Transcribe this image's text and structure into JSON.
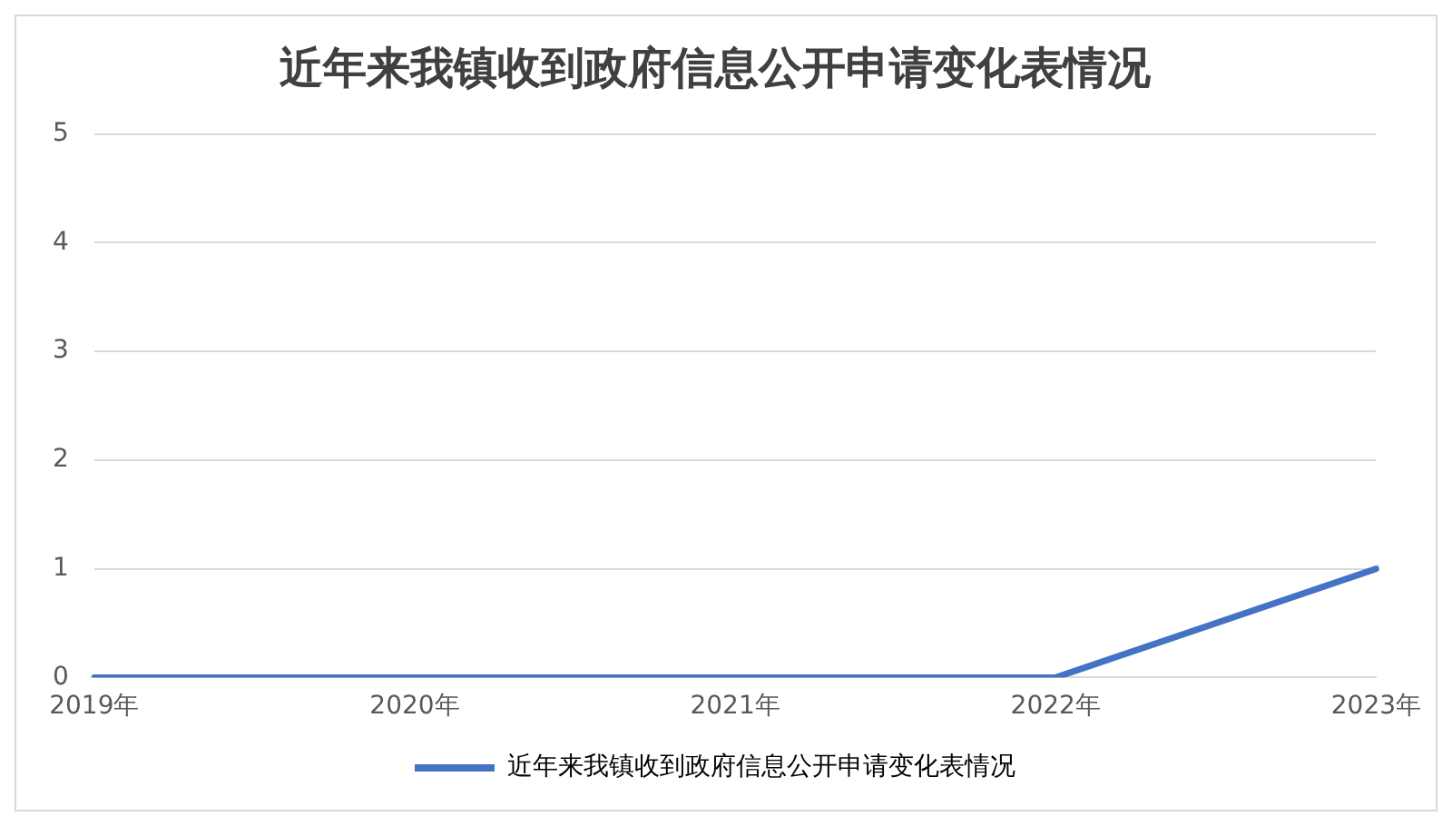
{
  "chart_data": {
    "type": "line",
    "title": "近年来我镇收到政府信息公开申请变化表情况",
    "categories": [
      "2019年",
      "2020年",
      "2021年",
      "2022年",
      "2023年"
    ],
    "series": [
      {
        "name": "近年来我镇收到政府信息公开申请变化表情况",
        "color": "#4472c4",
        "values": [
          0,
          0,
          0,
          0,
          1
        ]
      }
    ],
    "ylim": [
      0,
      5
    ],
    "yticks": [
      0,
      1,
      2,
      3,
      4,
      5
    ],
    "grid": "y",
    "legend": "bottom",
    "marker": "none",
    "line_style": "solid"
  }
}
